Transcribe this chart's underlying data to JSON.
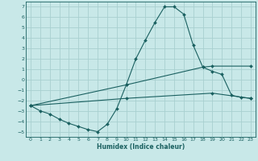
{
  "xlabel": "Humidex (Indice chaleur)",
  "background_color": "#c8e8e8",
  "grid_color": "#a8d0d0",
  "line_color": "#1a6060",
  "xlim": [
    -0.5,
    23.5
  ],
  "ylim": [
    -5.5,
    7.5
  ],
  "xticks": [
    0,
    1,
    2,
    3,
    4,
    5,
    6,
    7,
    8,
    9,
    10,
    11,
    12,
    13,
    14,
    15,
    16,
    17,
    18,
    19,
    20,
    21,
    22,
    23
  ],
  "yticks": [
    -5,
    -4,
    -3,
    -2,
    -1,
    0,
    1,
    2,
    3,
    4,
    5,
    6,
    7
  ],
  "series": [
    [
      0,
      -2.5
    ],
    [
      1,
      -3.0
    ],
    [
      2,
      -3.3
    ],
    [
      3,
      -3.8
    ],
    [
      4,
      -4.2
    ],
    [
      5,
      -4.5
    ],
    [
      6,
      -4.8
    ],
    [
      7,
      -5.0
    ],
    [
      8,
      -4.3
    ],
    [
      9,
      -2.8
    ],
    [
      10,
      -0.5
    ],
    [
      11,
      2.0
    ],
    [
      12,
      3.8
    ],
    [
      13,
      5.5
    ],
    [
      14,
      7.0
    ],
    [
      15,
      7.0
    ],
    [
      16,
      6.3
    ],
    [
      17,
      3.3
    ],
    [
      18,
      1.2
    ],
    [
      19,
      0.8
    ],
    [
      20,
      0.5
    ],
    [
      21,
      -1.5
    ],
    [
      22,
      -1.7
    ],
    [
      23,
      -1.8
    ]
  ],
  "line2_pts": [
    [
      0,
      -2.5
    ],
    [
      10,
      -0.5
    ],
    [
      18,
      1.2
    ],
    [
      19,
      1.3
    ],
    [
      23,
      1.3
    ]
  ],
  "line3_pts": [
    [
      0,
      -2.5
    ],
    [
      10,
      -1.8
    ],
    [
      19,
      -1.3
    ],
    [
      23,
      -1.8
    ]
  ]
}
